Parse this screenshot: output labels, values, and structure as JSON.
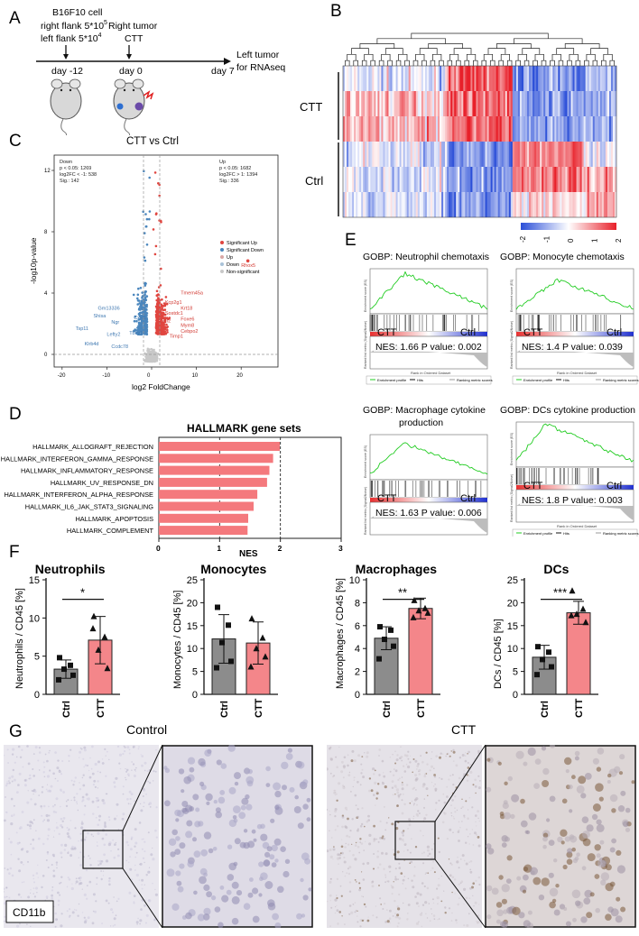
{
  "panels": {
    "A": "A",
    "B": "B",
    "C": "C",
    "D": "D",
    "E": "E",
    "F": "F",
    "G": "G"
  },
  "panelA": {
    "cell_line": "B16F10 cell",
    "right_flank": "right flank 5*10",
    "right_exp": "5",
    "left_flank": "left flank 5*10",
    "left_exp": "4",
    "right_tumor": "Right tumor",
    "treatment": "CTT",
    "day_m12": "day -12",
    "day_0": "day 0",
    "day_7": "day 7",
    "left_tumor": "Left tumor",
    "rnaseq": "for RNAseq"
  },
  "panelB": {
    "row_labels": [
      "CTT",
      "Ctrl"
    ],
    "colorbar_ticks": [
      "-2",
      "-1",
      "0",
      "1",
      "2"
    ],
    "colors": {
      "low": "#2b4fd8",
      "mid": "#ffffff",
      "high": "#e8202a"
    }
  },
  "panelC": {
    "title": "CTT vs Ctrl",
    "down_block": [
      "Down",
      "p < 0.05: 1269",
      "log2FC < -1: 538",
      "Sig.: 142"
    ],
    "up_block": [
      "Up",
      "p < 0.05: 1682",
      "log2FC > 1: 1394",
      "Sig.: 336"
    ],
    "yaxis_label": "-log10p-value",
    "xaxis_label": "log2 FoldChange",
    "x_ticks": [
      "-20",
      "-10",
      "0",
      "10",
      "20"
    ],
    "y_ticks": [
      "0",
      "4",
      "8",
      "12"
    ],
    "legend": [
      "Significant Up",
      "Significant Down",
      "Up",
      "Down",
      "Non-significant"
    ],
    "gene_labels_up": [
      "Rhox5",
      "Tmem45a",
      "Kcp2g1",
      "Krt18",
      "Sostdc1",
      "Foxe6",
      "Mym8",
      "Cxcl2",
      "Cebpo2",
      "Timp1"
    ],
    "gene_labels_down": [
      "Gm13336",
      "Shisa",
      "Ngr",
      "Tsp11",
      "Lefty2",
      "Klrb4d",
      "Ccdc78",
      "Cxxl1",
      "Tbcy1"
    ],
    "colors": {
      "up": "#e0453f",
      "down": "#4a86bd",
      "ns": "#c8c8c8"
    }
  },
  "panelD": {
    "title": "HALLMARK gene sets",
    "xlabel": "NES",
    "x_ticks": [
      "0",
      "1",
      "2",
      "3"
    ],
    "color": "#f4797d"
  },
  "panelE": {
    "plots": [
      {
        "title": "GOBP: Neutrophil chemotaxis",
        "title2": "",
        "left": "CTT",
        "right": "Ctrl",
        "stats": "NES: 1.66 P value: 0.002"
      },
      {
        "title": "GOBP: Monocyte chemotaxis",
        "title2": "",
        "left": "CTT",
        "right": "Ctrl",
        "stats": "NES: 1.4 P value: 0.039"
      },
      {
        "title": "GOBP: Macrophage cytokine",
        "title2": "production",
        "left": "CTT",
        "right": "Ctrl",
        "stats": "NES: 1.63 P value: 0.006"
      },
      {
        "title": "GOBP: DCs cytokine production",
        "title2": "",
        "left": "CTT",
        "right": "Ctrl",
        "stats": "NES: 1.8 P value: 0.003"
      }
    ],
    "axis_es": "Enrichment score (ES)",
    "axis_rank": "Ranked list metric (Signal2Noise)",
    "axis_x": "Rank in Ordered Dataset",
    "legend": [
      "Enrichment profile",
      "Hits",
      "Ranking metric scores"
    ],
    "colors": {
      "curve": "#22cc22",
      "pos": "#e83030",
      "neg": "#2030d0"
    }
  },
  "panelF": {
    "groups": [
      "Ctrl",
      "CTT"
    ],
    "colors": {
      "ctrl": "#8c8c8c",
      "ctt": "#f4868a"
    }
  },
  "panelG": {
    "control_title": "Control",
    "ctt_title": "CTT",
    "stain": "CD11b"
  },
  "chart_data": [
    {
      "type": "bar",
      "title": "HALLMARK gene sets",
      "xlabel": "NES",
      "ylabel": "",
      "orientation": "horizontal",
      "categories": [
        "HALLMARK_ALLOGRAFT_REJECTION",
        "HALLMARK_INTERFERON_GAMMA_RESPONSE",
        "HALLMARK_INFLAMMATORY_RESPONSE",
        "HALLMARK_UV_RESPONSE_DN",
        "HALLMARK_INTERFERON_ALPHA_RESPONSE",
        "HALLMARK_IL6_JAK_STAT3_SIGNALING",
        "HALLMARK_APOPTOSIS",
        "HALLMARK_COMPLEMENT"
      ],
      "values": [
        1.99,
        1.88,
        1.82,
        1.78,
        1.62,
        1.56,
        1.47,
        1.46
      ],
      "xlim": [
        0,
        3
      ],
      "grid": "dashed lines at 1 and 2"
    },
    {
      "type": "bar",
      "title": "Neutrophils",
      "ylabel": "Neutrophils / CD45 [%]",
      "categories": [
        "Ctrl",
        "CTT"
      ],
      "values": [
        3.3,
        7.1
      ],
      "errors": [
        1.2,
        3.1
      ],
      "points": [
        [
          4.8,
          3.8,
          3.3,
          2.5,
          1.9
        ],
        [
          10.2,
          7.5,
          5.8,
          3.4,
          8.6
        ]
      ],
      "ylim": [
        0,
        15
      ],
      "y_ticks": [
        "0",
        "5",
        "10",
        "15"
      ],
      "significance": "*"
    },
    {
      "type": "bar",
      "title": "Monocytes",
      "ylabel": "Monocytes / CD45 [%]",
      "categories": [
        "Ctrl",
        "CTT"
      ],
      "values": [
        12.1,
        11.2
      ],
      "errors": [
        5.3,
        4.6
      ],
      "points": [
        [
          19.0,
          15.1,
          11.3,
          7.2,
          5.8
        ],
        [
          16.5,
          12.3,
          10.0,
          8.2,
          6.0
        ]
      ],
      "ylim": [
        0,
        25
      ],
      "y_ticks": [
        "0",
        "5",
        "10",
        "15",
        "20",
        "25"
      ],
      "significance": ""
    },
    {
      "type": "bar",
      "title": "Macrophages",
      "ylabel": "Macrophages / CD45 [%]",
      "categories": [
        "Ctrl",
        "CTT"
      ],
      "values": [
        4.9,
        7.5
      ],
      "errors": [
        1.0,
        0.9
      ],
      "points": [
        [
          5.9,
          5.6,
          4.8,
          4.2,
          3.1
        ],
        [
          8.2,
          7.5,
          7.3,
          7.1,
          6.7
        ]
      ],
      "ylim": [
        0,
        10
      ],
      "y_ticks": [
        "0",
        "2",
        "4",
        "6",
        "8",
        "10"
      ],
      "significance": "**"
    },
    {
      "type": "bar",
      "title": "DCs",
      "ylabel": "DCs / CD45 [%]",
      "categories": [
        "Ctrl",
        "CTT"
      ],
      "values": [
        8.1,
        17.8
      ],
      "errors": [
        2.6,
        2.5
      ],
      "points": [
        [
          10.4,
          9.2,
          7.6,
          6.0,
          4.3
        ],
        [
          22.6,
          18.6,
          17.5,
          15.7,
          17.2
        ]
      ],
      "ylim": [
        0,
        25
      ],
      "y_ticks": [
        "0",
        "5",
        "10",
        "15",
        "20",
        "25"
      ],
      "significance": "***"
    }
  ]
}
